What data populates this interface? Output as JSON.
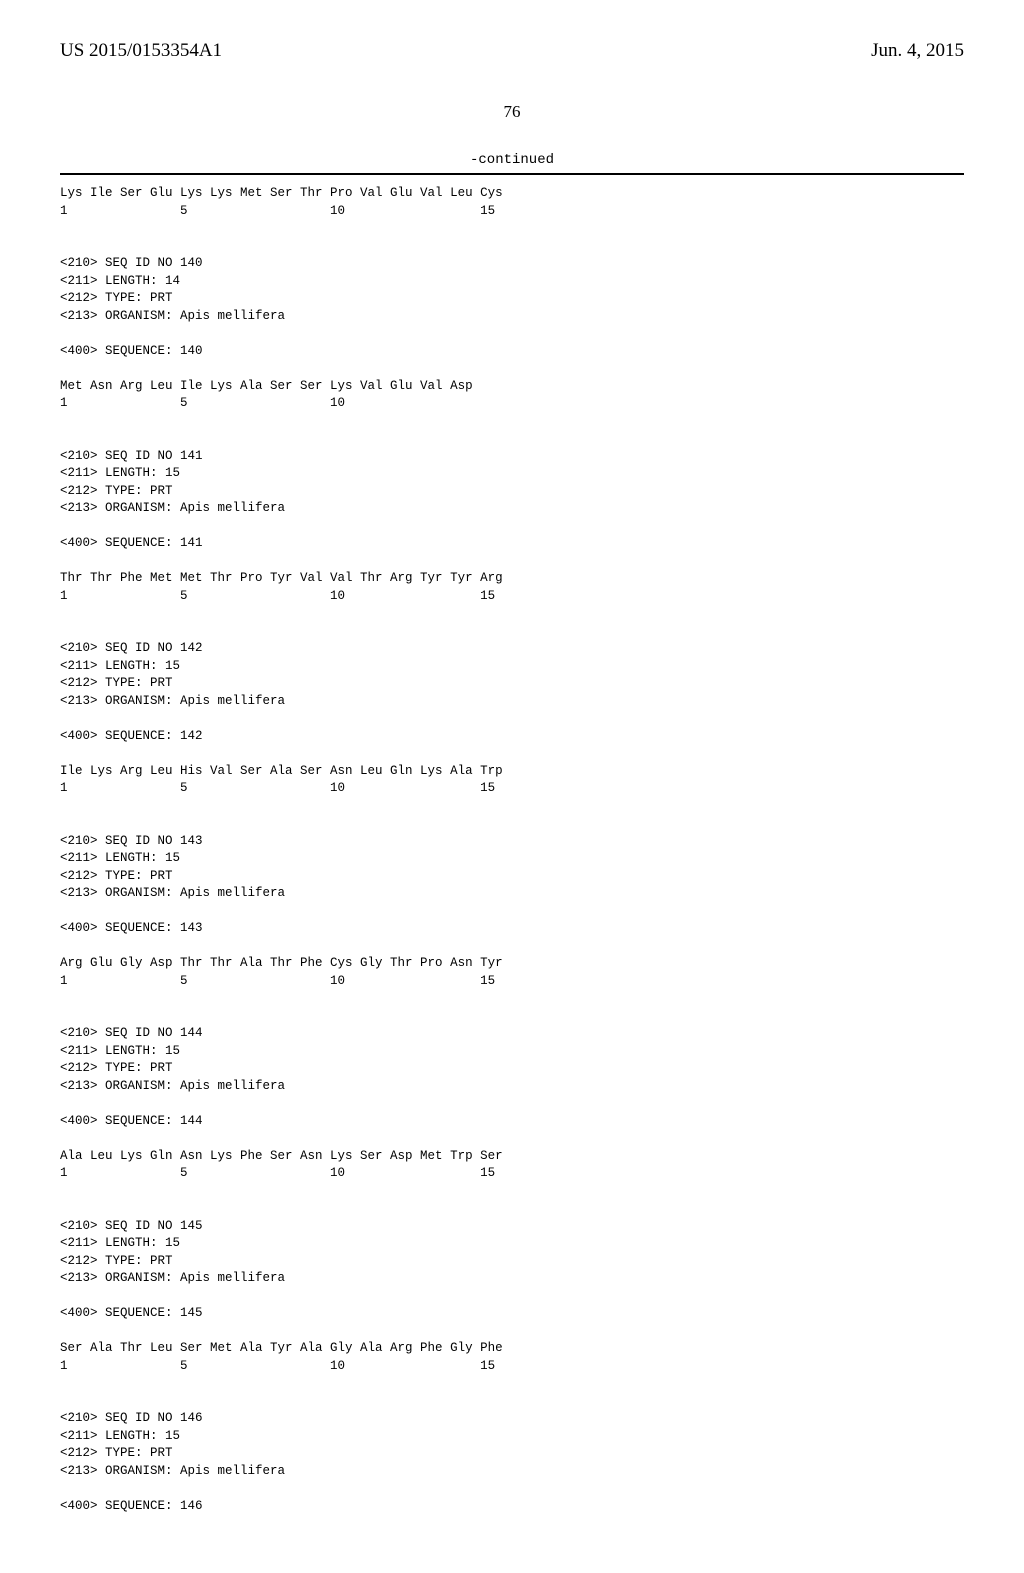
{
  "header": {
    "pub_number": "US 2015/0153354A1",
    "pub_date": "Jun. 4, 2015"
  },
  "page_number": "76",
  "continued_label": "-continued",
  "blocks": [
    {
      "seq_line": "Lys Ile Ser Glu Lys Lys Met Ser Thr Pro Val Glu Val Leu Cys",
      "num_line": "1               5                   10                  15"
    },
    {
      "meta": [
        "<210> SEQ ID NO 140",
        "<211> LENGTH: 14",
        "<212> TYPE: PRT",
        "<213> ORGANISM: Apis mellifera"
      ],
      "seq_header": "<400> SEQUENCE: 140",
      "seq_line": "Met Asn Arg Leu Ile Lys Ala Ser Ser Lys Val Glu Val Asp",
      "num_line": "1               5                   10"
    },
    {
      "meta": [
        "<210> SEQ ID NO 141",
        "<211> LENGTH: 15",
        "<212> TYPE: PRT",
        "<213> ORGANISM: Apis mellifera"
      ],
      "seq_header": "<400> SEQUENCE: 141",
      "seq_line": "Thr Thr Phe Met Met Thr Pro Tyr Val Val Thr Arg Tyr Tyr Arg",
      "num_line": "1               5                   10                  15"
    },
    {
      "meta": [
        "<210> SEQ ID NO 142",
        "<211> LENGTH: 15",
        "<212> TYPE: PRT",
        "<213> ORGANISM: Apis mellifera"
      ],
      "seq_header": "<400> SEQUENCE: 142",
      "seq_line": "Ile Lys Arg Leu His Val Ser Ala Ser Asn Leu Gln Lys Ala Trp",
      "num_line": "1               5                   10                  15"
    },
    {
      "meta": [
        "<210> SEQ ID NO 143",
        "<211> LENGTH: 15",
        "<212> TYPE: PRT",
        "<213> ORGANISM: Apis mellifera"
      ],
      "seq_header": "<400> SEQUENCE: 143",
      "seq_line": "Arg Glu Gly Asp Thr Thr Ala Thr Phe Cys Gly Thr Pro Asn Tyr",
      "num_line": "1               5                   10                  15"
    },
    {
      "meta": [
        "<210> SEQ ID NO 144",
        "<211> LENGTH: 15",
        "<212> TYPE: PRT",
        "<213> ORGANISM: Apis mellifera"
      ],
      "seq_header": "<400> SEQUENCE: 144",
      "seq_line": "Ala Leu Lys Gln Asn Lys Phe Ser Asn Lys Ser Asp Met Trp Ser",
      "num_line": "1               5                   10                  15"
    },
    {
      "meta": [
        "<210> SEQ ID NO 145",
        "<211> LENGTH: 15",
        "<212> TYPE: PRT",
        "<213> ORGANISM: Apis mellifera"
      ],
      "seq_header": "<400> SEQUENCE: 145",
      "seq_line": "Ser Ala Thr Leu Ser Met Ala Tyr Ala Gly Ala Arg Phe Gly Phe",
      "num_line": "1               5                   10                  15"
    },
    {
      "meta": [
        "<210> SEQ ID NO 146",
        "<211> LENGTH: 15",
        "<212> TYPE: PRT",
        "<213> ORGANISM: Apis mellifera"
      ],
      "seq_header": "<400> SEQUENCE: 146"
    }
  ]
}
